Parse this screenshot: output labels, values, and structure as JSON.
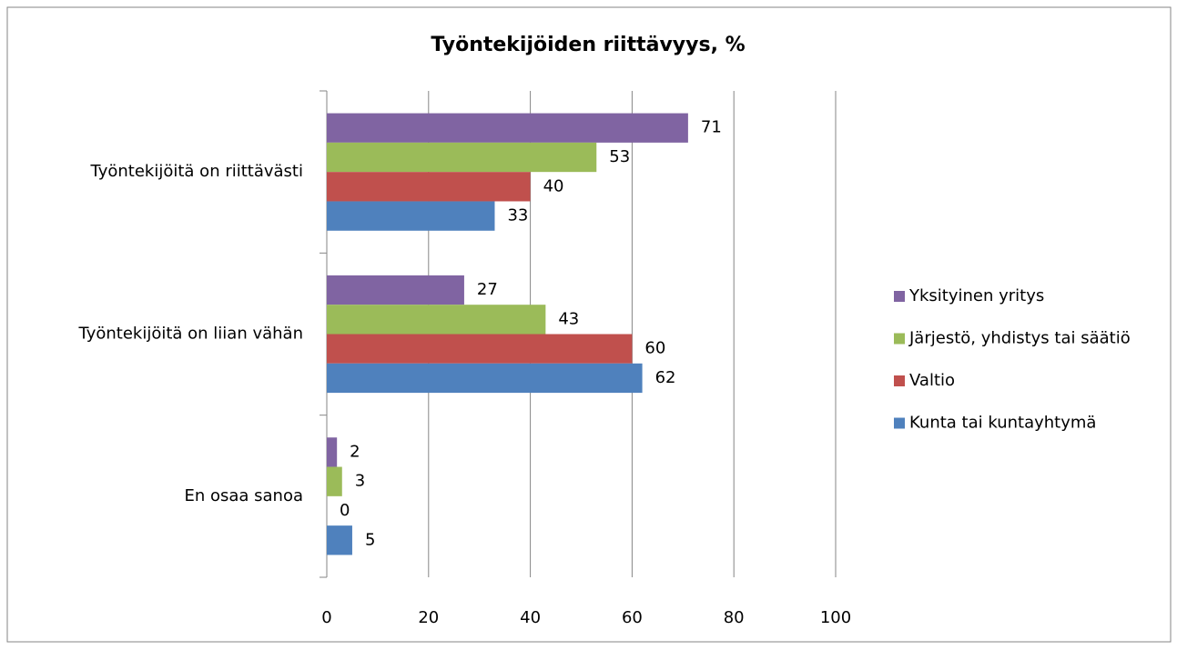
{
  "chart_data": {
    "type": "barh",
    "title": "Työntekijöiden riittävyys, %",
    "categories": [
      "Työntekijöitä on riittävästi",
      "Työntekijöitä on liian vähän",
      "En osaa sanoa"
    ],
    "series": [
      {
        "name": "Yksityinen yritys",
        "color": "#8064a2",
        "values": [
          71,
          27,
          2
        ]
      },
      {
        "name": "Järjestö, yhdistys tai säätiö",
        "color": "#9bbb59",
        "values": [
          53,
          43,
          3
        ]
      },
      {
        "name": "Valtio",
        "color": "#c0504d",
        "values": [
          40,
          60,
          0
        ]
      },
      {
        "name": "Kunta tai kuntayhtymä",
        "color": "#4f81bd",
        "values": [
          33,
          62,
          5
        ]
      }
    ],
    "xlim": [
      0,
      100
    ],
    "xticks": [
      0,
      20,
      40,
      60,
      80,
      100
    ],
    "grid": true,
    "legend": "right"
  }
}
